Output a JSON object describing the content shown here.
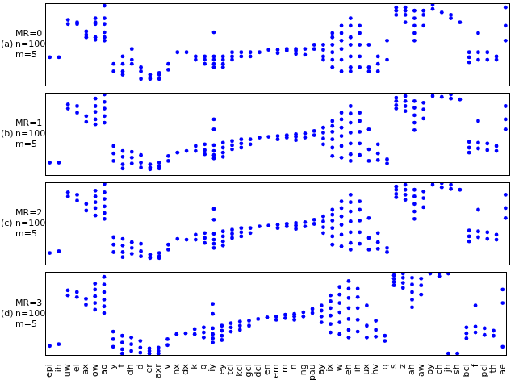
{
  "chart_data": [
    {
      "type": "scatter",
      "label": "(a)",
      "annotations": [
        "MR=0",
        "n=100",
        "m=5"
      ],
      "color": "#0000ff",
      "marker": "circle",
      "tick_labels": false,
      "ylim": [
        0,
        10
      ],
      "categories": [
        "epi",
        "ih",
        "uw",
        "el",
        "ax",
        "ow",
        "ao",
        "y",
        "t",
        "dh",
        "d",
        "er",
        "axr",
        "v",
        "nx",
        "dx",
        "k",
        "g",
        "iy",
        "ey",
        "tcl",
        "kcl",
        "gcl",
        "dcl",
        "en",
        "em",
        "m",
        "n",
        "ng",
        "pau",
        "ay",
        "ix",
        "w",
        "eh",
        "ih",
        "ux",
        "hv",
        "q",
        "s",
        "z",
        "ah",
        "aw",
        "oy",
        "ch",
        "jh",
        "sh",
        "bcl",
        "f",
        "pcl",
        "th",
        "ae"
      ],
      "values": [
        [
          3.5
        ],
        [
          3.5
        ],
        [
          8.0,
          7.5
        ],
        [
          7.7,
          7.5
        ],
        [
          6.6,
          6.2,
          5.9
        ],
        [
          8.2,
          7.7,
          7.5,
          5.9,
          5.6
        ],
        [
          9.7,
          8.2,
          7.5,
          6.5,
          5.9,
          5.5
        ],
        [
          2.7,
          1.8
        ],
        [
          3.6,
          2.7,
          1.8,
          1.4
        ],
        [
          4.5,
          3.2,
          2.7
        ],
        [
          2.3,
          1.8,
          0.9
        ],
        [
          1.4,
          1.1,
          0.9
        ],
        [
          1.6,
          1.4,
          0.9
        ],
        [
          2.7,
          2.0
        ],
        [
          4.1
        ],
        [
          4.1
        ],
        [
          3.6,
          3.2
        ],
        [
          3.6,
          3.2,
          2.7
        ],
        [
          6.5,
          3.6,
          3.2,
          2.7,
          2.3
        ],
        [
          3.6,
          3.2,
          2.7,
          2.3
        ],
        [
          4.1,
          3.6,
          3.2
        ],
        [
          4.1,
          3.6
        ],
        [
          4.1,
          3.6
        ],
        [
          4.1
        ],
        [
          4.4
        ],
        [
          4.4,
          4.0
        ],
        [
          4.5,
          4.3
        ],
        [
          4.5,
          4.3,
          3.9
        ],
        [
          4.5,
          3.8
        ],
        [
          5.0,
          4.5
        ],
        [
          5.0,
          4.4,
          3.6,
          3.2
        ],
        [
          6.4,
          5.9,
          5.0,
          4.1,
          3.2,
          2.3
        ],
        [
          7.3,
          6.4,
          5.5,
          4.5,
          3.2,
          1.8
        ],
        [
          8.2,
          7.3,
          5.9,
          5.0,
          3.6,
          2.3,
          1.8
        ],
        [
          7.3,
          6.4,
          5.0,
          3.6,
          2.3
        ],
        [
          5.0,
          2.3,
          1.8
        ],
        [
          3.6,
          2.7,
          1.8
        ],
        [
          5.5,
          3.2
        ],
        [
          9.5,
          9.1,
          8.6
        ],
        [
          9.5,
          9.1,
          8.6,
          7.7
        ],
        [
          9.1,
          8.2,
          7.3,
          6.4,
          5.5
        ],
        [
          9.1,
          8.6,
          7.3
        ],
        [
          9.8,
          9.3
        ],
        [
          8.9
        ],
        [
          8.6,
          8.2
        ],
        [
          7.7
        ],
        [
          4.1,
          3.5,
          2.9
        ],
        [
          6.4,
          4.1,
          3.2
        ],
        [
          4.1,
          3.2
        ],
        [
          3.6,
          3.2
        ],
        [
          9.5,
          7.3,
          5.5
        ]
      ]
    },
    {
      "type": "scatter",
      "label": "(b)",
      "annotations": [
        "MR=1",
        "n=100",
        "m=5"
      ],
      "color": "#0000ff",
      "marker": "circle",
      "tick_labels": false,
      "ylim": [
        0,
        10
      ],
      "categories": [
        "epi",
        "ih",
        "uw",
        "el",
        "ax",
        "ow",
        "ao",
        "y",
        "t",
        "dh",
        "d",
        "er",
        "axr",
        "v",
        "nx",
        "dx",
        "k",
        "g",
        "iy",
        "ey",
        "tcl",
        "kcl",
        "gcl",
        "dcl",
        "en",
        "em",
        "m",
        "n",
        "ng",
        "pau",
        "ay",
        "ix",
        "w",
        "eh",
        "ih",
        "ux",
        "hv",
        "q",
        "s",
        "z",
        "ah",
        "aw",
        "oy",
        "ch",
        "jh",
        "sh",
        "bcl",
        "f",
        "pcl",
        "th",
        "ae"
      ],
      "values": [
        [
          1.6
        ],
        [
          1.6
        ],
        [
          8.6,
          8.1
        ],
        [
          8.4,
          7.6
        ],
        [
          7.2,
          6.5
        ],
        [
          9.3,
          8.4,
          7.7,
          6.8,
          6.2
        ],
        [
          9.8,
          8.9,
          8.1,
          7.2,
          6.4
        ],
        [
          3.6,
          2.7,
          1.8
        ],
        [
          3.0,
          2.3,
          1.4,
          0.9
        ],
        [
          2.9,
          2.2,
          1.5
        ],
        [
          2.5,
          1.6,
          1.0
        ],
        [
          1.4,
          1.0,
          0.8
        ],
        [
          1.6,
          1.2,
          0.9
        ],
        [
          2.4,
          1.8
        ],
        [
          2.8
        ],
        [
          3.0
        ],
        [
          3.6,
          3.0
        ],
        [
          3.8,
          3.1,
          2.6
        ],
        [
          6.8,
          5.6,
          3.7,
          3.0,
          2.5,
          2.1
        ],
        [
          4.0,
          3.4,
          2.8,
          2.3
        ],
        [
          4.2,
          3.7,
          3.2
        ],
        [
          4.4,
          3.9,
          3.4
        ],
        [
          4.4,
          3.8
        ],
        [
          4.6
        ],
        [
          4.7
        ],
        [
          4.8,
          4.4
        ],
        [
          4.9,
          4.6
        ],
        [
          5.0,
          4.7,
          4.3
        ],
        [
          5.1,
          4.6
        ],
        [
          5.4,
          4.9
        ],
        [
          5.8,
          5.2,
          4.5,
          3.8
        ],
        [
          6.6,
          6.0,
          5.3,
          4.4,
          3.4,
          2.4
        ],
        [
          7.6,
          6.8,
          5.8,
          4.8,
          3.6,
          2.2
        ],
        [
          8.4,
          7.5,
          6.4,
          5.2,
          3.9,
          2.6,
          1.8
        ],
        [
          7.6,
          6.6,
          5.3,
          3.9,
          2.5
        ],
        [
          5.6,
          3.2,
          1.8
        ],
        [
          3.8,
          2.7,
          1.9
        ],
        [
          2.0,
          1.5
        ],
        [
          9.4,
          9.0,
          8.5,
          8.1
        ],
        [
          9.6,
          9.0,
          8.4,
          7.8
        ],
        [
          9.0,
          8.2,
          7.3,
          6.4,
          5.5
        ],
        [
          8.8,
          8.0,
          6.9
        ],
        [
          9.9,
          9.6
        ],
        [
          10.0,
          9.5
        ],
        [
          9.8,
          9.3
        ],
        [
          9.2
        ],
        [
          4.1,
          3.4,
          2.8
        ],
        [
          6.6,
          4.0,
          3.3
        ],
        [
          3.9,
          3.1
        ],
        [
          3.6,
          3.0
        ],
        [
          8.4,
          6.8,
          5.6
        ]
      ]
    },
    {
      "type": "scatter",
      "label": "(c)",
      "annotations": [
        "MR=2",
        "n=100",
        "m=5"
      ],
      "color": "#0000ff",
      "marker": "circle",
      "tick_labels": false,
      "ylim": [
        0,
        10
      ],
      "categories": [
        "epi",
        "ih",
        "uw",
        "el",
        "ax",
        "ow",
        "ao",
        "y",
        "t",
        "dh",
        "d",
        "er",
        "axr",
        "v",
        "nx",
        "dx",
        "k",
        "g",
        "iy",
        "ey",
        "tcl",
        "kcl",
        "gcl",
        "dcl",
        "en",
        "em",
        "m",
        "n",
        "ng",
        "pau",
        "ay",
        "ix",
        "w",
        "eh",
        "ih",
        "ux",
        "hv",
        "q",
        "s",
        "z",
        "ah",
        "aw",
        "oy",
        "ch",
        "jh",
        "sh",
        "bcl",
        "f",
        "pcl",
        "th",
        "ae"
      ],
      "values": [
        [
          1.5
        ],
        [
          1.7
        ],
        [
          8.8,
          8.3
        ],
        [
          8.5,
          7.8
        ],
        [
          7.4,
          6.6
        ],
        [
          9.0,
          8.3,
          7.6,
          6.9,
          6.0
        ],
        [
          9.8,
          8.8,
          8.0,
          7.1,
          6.3,
          5.6
        ],
        [
          3.4,
          2.5,
          1.6
        ],
        [
          3.2,
          2.4,
          1.6,
          1.0
        ],
        [
          2.8,
          2.1,
          1.4
        ],
        [
          2.6,
          1.7,
          1.1
        ],
        [
          1.3,
          1.0,
          0.9
        ],
        [
          1.5,
          1.1,
          0.9
        ],
        [
          2.5,
          1.9
        ],
        [
          3.2
        ],
        [
          3.1
        ],
        [
          3.7,
          3.1
        ],
        [
          3.9,
          3.3,
          2.7
        ],
        [
          6.8,
          5.5,
          3.8,
          3.1,
          2.6,
          2.1
        ],
        [
          4.1,
          3.5,
          2.9,
          2.4
        ],
        [
          4.3,
          3.8,
          3.3
        ],
        [
          4.5,
          4.0,
          3.5
        ],
        [
          4.5,
          3.9
        ],
        [
          4.7
        ],
        [
          4.8
        ],
        [
          4.9,
          4.5
        ],
        [
          5.0,
          4.7
        ],
        [
          5.1,
          4.8,
          4.4
        ],
        [
          5.2,
          4.7
        ],
        [
          5.5,
          5.0
        ],
        [
          5.9,
          5.3,
          4.6,
          3.9
        ],
        [
          6.7,
          6.1,
          5.4,
          4.5,
          3.5,
          2.5
        ],
        [
          7.7,
          6.9,
          5.9,
          4.9,
          3.7,
          2.3
        ],
        [
          8.5,
          7.6,
          6.5,
          5.3,
          4.0,
          2.7,
          1.9
        ],
        [
          7.7,
          6.7,
          5.4,
          4.0,
          2.6
        ],
        [
          5.7,
          3.3,
          1.9
        ],
        [
          3.9,
          2.8,
          2.0
        ],
        [
          2.1,
          1.6
        ],
        [
          9.5,
          9.1,
          8.6,
          8.2
        ],
        [
          9.7,
          9.1,
          8.5,
          7.9
        ],
        [
          9.1,
          8.3,
          7.4,
          6.5,
          5.6
        ],
        [
          8.9,
          8.1,
          7.0
        ],
        [
          10.0,
          9.7
        ],
        [
          9.9,
          9.4
        ],
        [
          9.7,
          9.2
        ],
        [
          9.1
        ],
        [
          4.2,
          3.5,
          2.9
        ],
        [
          6.7,
          4.1,
          3.4
        ],
        [
          4.0,
          3.2
        ],
        [
          3.7,
          3.1
        ],
        [
          8.5,
          6.9,
          5.7
        ]
      ]
    },
    {
      "type": "scatter",
      "label": "(d)",
      "annotations": [
        "MR=3",
        "n=100",
        "m=5"
      ],
      "color": "#0000ff",
      "marker": "circle",
      "tick_labels": "x",
      "ylim": [
        0,
        10
      ],
      "categories": [
        "epi",
        "ih",
        "uw",
        "el",
        "ax",
        "ow",
        "ao",
        "y",
        "t",
        "dh",
        "d",
        "er",
        "axr",
        "v",
        "nx",
        "dx",
        "k",
        "g",
        "iy",
        "ey",
        "tcl",
        "kcl",
        "gcl",
        "dcl",
        "en",
        "em",
        "m",
        "n",
        "ng",
        "pau",
        "ay",
        "ix",
        "w",
        "eh",
        "ih",
        "ux",
        "hv",
        "q",
        "s",
        "z",
        "ah",
        "aw",
        "oy",
        "ch",
        "jh",
        "sh",
        "bcl",
        "f",
        "pcl",
        "th",
        "ae"
      ],
      "values": [
        [
          1.2
        ],
        [
          1.4
        ],
        [
          7.8,
          7.2
        ],
        [
          7.6,
          7.0
        ],
        [
          6.8,
          6.1
        ],
        [
          8.6,
          7.9,
          7.1,
          6.3,
          5.5
        ],
        [
          9.4,
          8.5,
          7.6,
          6.7,
          5.9,
          5.1
        ],
        [
          2.9,
          2.0,
          1.1
        ],
        [
          2.4,
          1.6,
          0.8,
          0.3
        ],
        [
          2.2,
          1.4,
          0.6
        ],
        [
          1.8,
          1.0,
          0.4
        ],
        [
          0.9,
          0.6,
          0.3
        ],
        [
          1.0,
          0.6,
          0.3
        ],
        [
          2.0,
          1.3
        ],
        [
          2.6
        ],
        [
          2.7
        ],
        [
          3.2,
          2.6
        ],
        [
          3.4,
          2.8,
          2.2
        ],
        [
          6.2,
          5.0,
          3.3,
          2.6,
          2.1,
          1.6
        ],
        [
          3.6,
          3.0,
          2.4,
          1.9
        ],
        [
          3.9,
          3.4,
          2.9
        ],
        [
          4.1,
          3.6,
          3.1
        ],
        [
          4.2,
          3.6
        ],
        [
          4.4
        ],
        [
          4.6
        ],
        [
          4.7,
          4.3
        ],
        [
          4.9,
          4.5
        ],
        [
          5.0,
          4.7,
          4.3
        ],
        [
          5.2,
          4.7
        ],
        [
          5.6,
          5.1
        ],
        [
          6.0,
          5.4,
          4.7,
          4.0
        ],
        [
          7.2,
          6.5,
          5.7,
          4.8,
          3.8,
          2.8
        ],
        [
          8.2,
          7.3,
          6.3,
          5.2,
          4.0,
          2.6
        ],
        [
          8.9,
          8.0,
          6.9,
          5.7,
          4.4,
          3.1,
          2.2
        ],
        [
          8.0,
          7.0,
          5.7,
          4.3,
          2.9
        ],
        [
          6.0,
          3.6,
          2.2
        ],
        [
          4.2,
          3.1,
          2.3
        ],
        [
          2.4,
          1.8
        ],
        [
          9.6,
          9.2,
          8.8,
          8.4
        ],
        [
          9.8,
          9.3,
          8.7,
          8.1
        ],
        [
          9.3,
          8.5,
          7.6,
          6.7,
          5.8
        ],
        [
          9.2,
          8.4,
          7.3
        ],
        [
          10.0,
          9.8
        ],
        [
          9.9,
          9.5
        ],
        [
          9.8,
          0.3
        ],
        [
          0.3
        ],
        [
          3.4,
          2.7,
          2.1
        ],
        [
          6.0,
          3.5,
          2.8
        ],
        [
          3.3,
          2.5
        ],
        [
          3.0,
          2.4
        ],
        [
          7.9,
          6.3,
          1.1
        ]
      ]
    }
  ]
}
